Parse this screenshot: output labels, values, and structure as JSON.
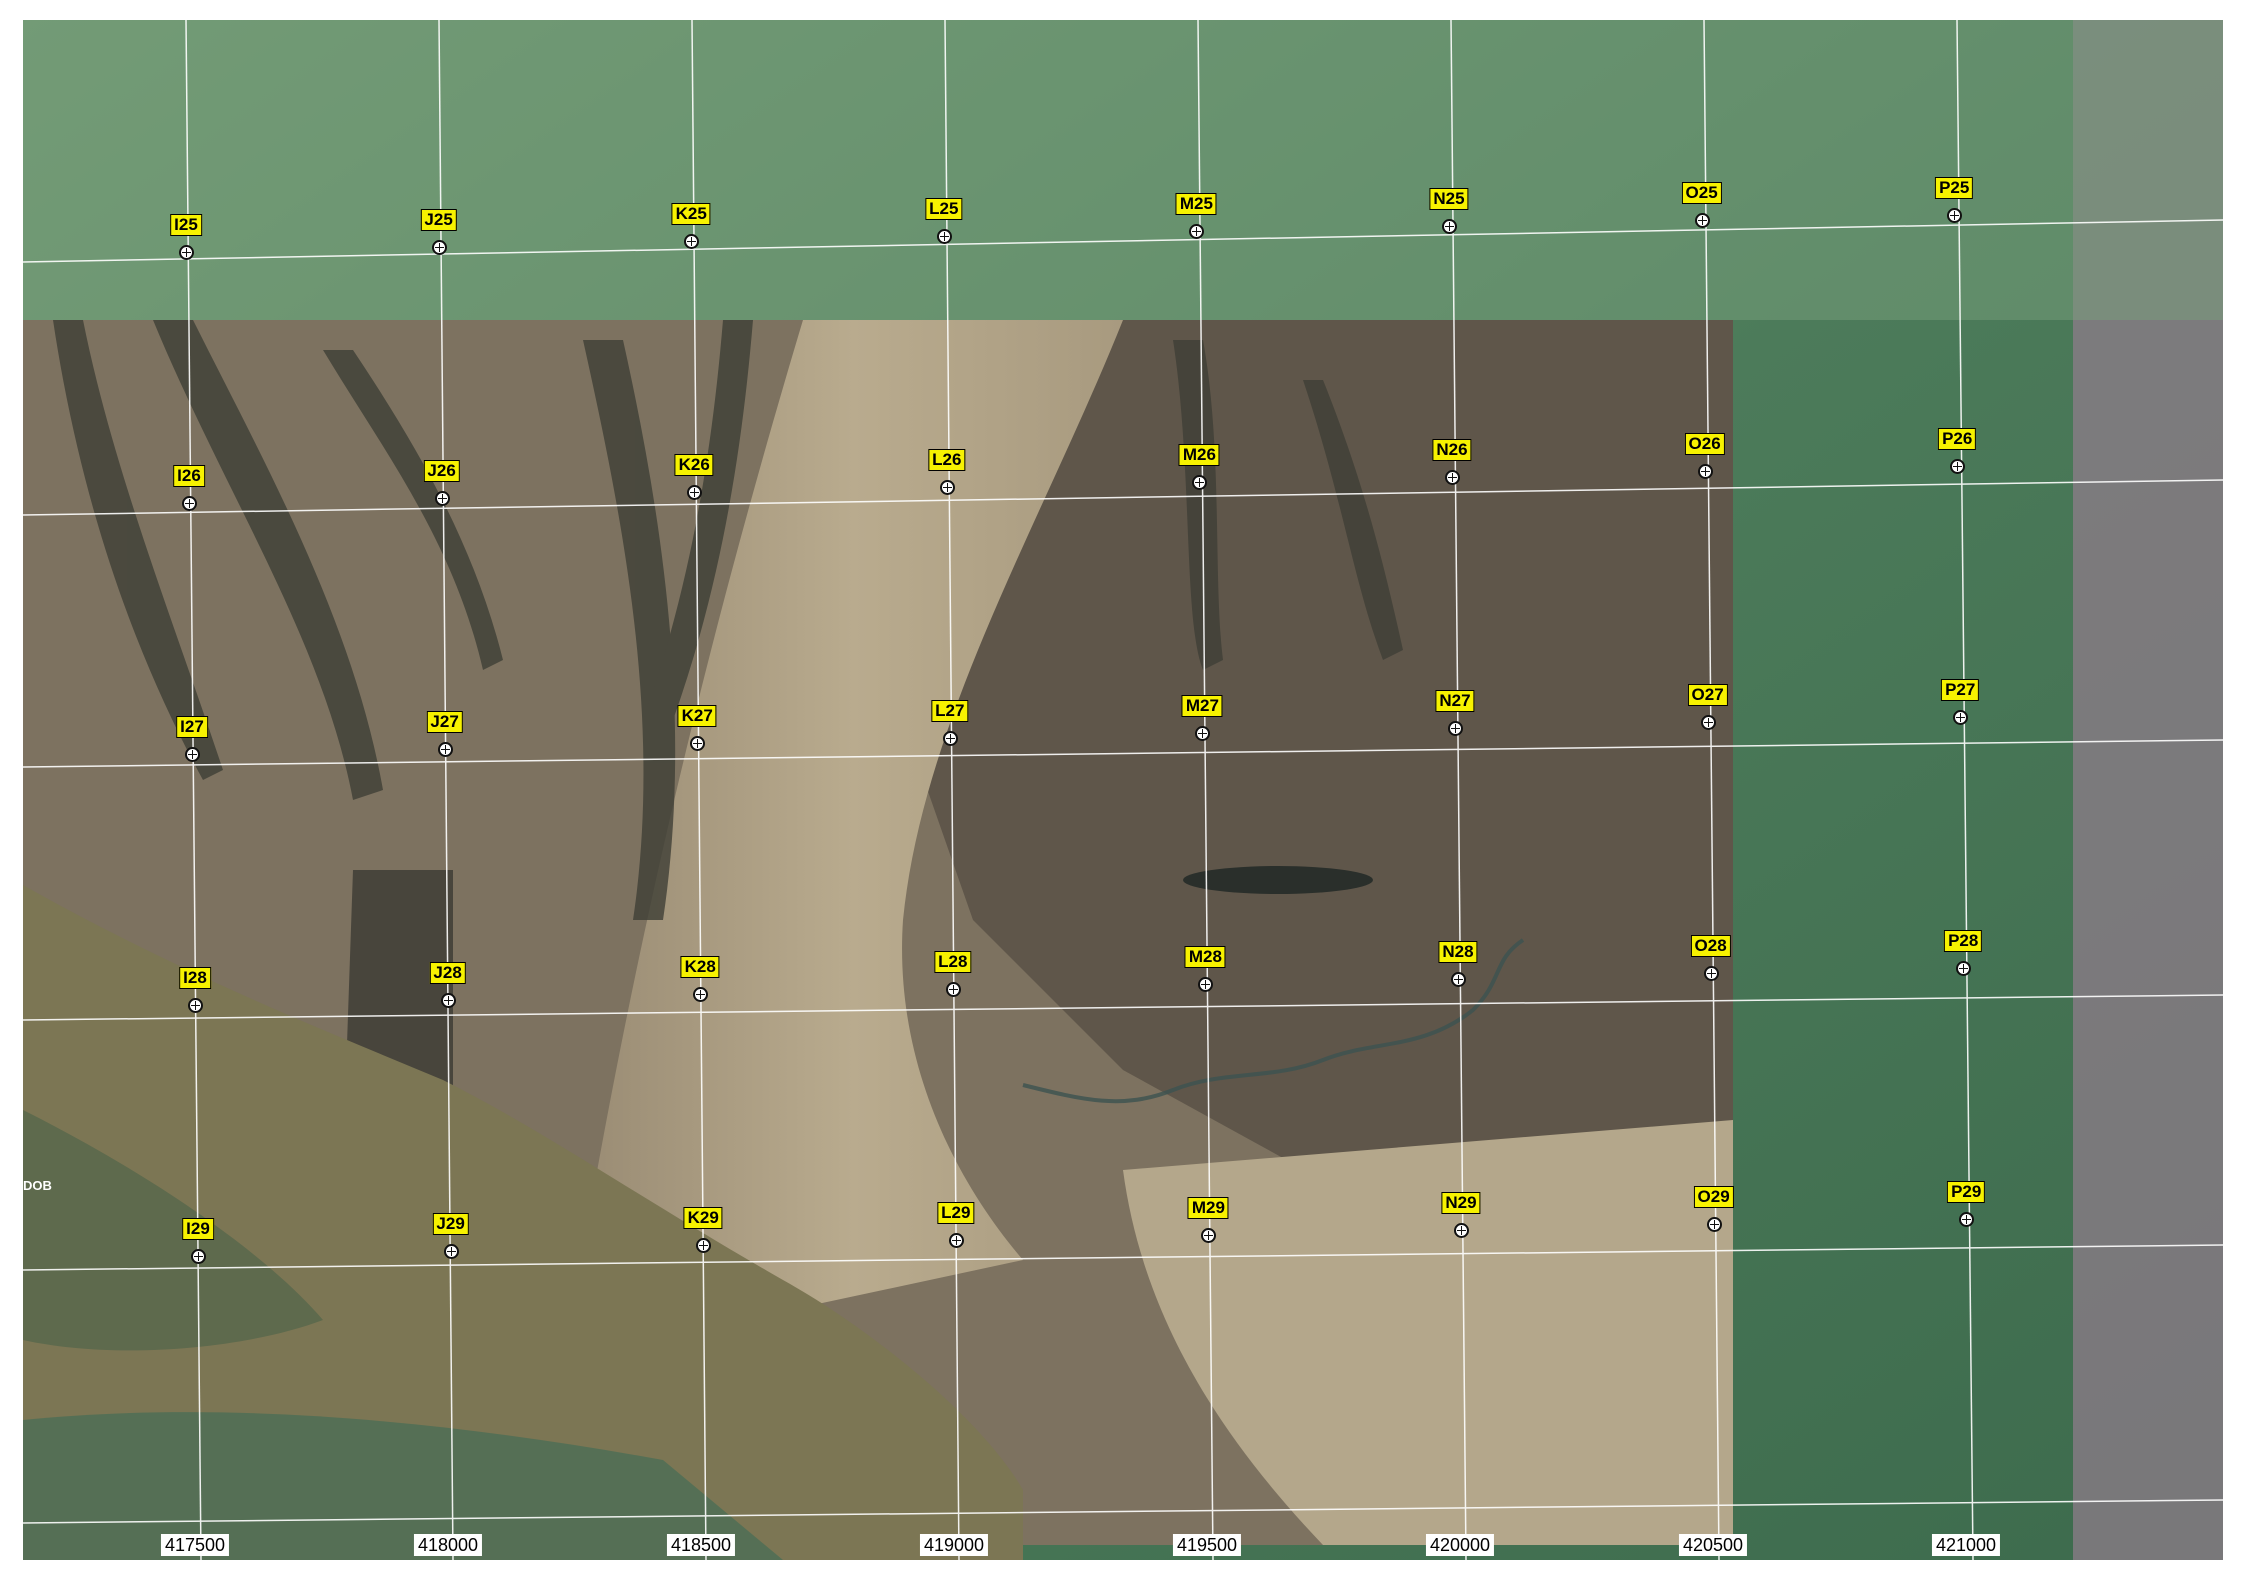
{
  "map": {
    "place_fragment": "DOB",
    "grid_columns": [
      "I",
      "J",
      "K",
      "L",
      "M",
      "N",
      "O",
      "P"
    ],
    "grid_rows": [
      "25",
      "26",
      "27",
      "28",
      "29"
    ],
    "easting_labels": [
      "417500",
      "418000",
      "418500",
      "419000",
      "419500",
      "420000",
      "420500",
      "421000"
    ],
    "colors": {
      "field": "#b2a589",
      "forest_dark": "#5d5548",
      "green_imagery": "#4e7e5e",
      "river": "#7c7654",
      "grid_lines": "#ffffff",
      "label_fill": "#f7f200"
    }
  }
}
